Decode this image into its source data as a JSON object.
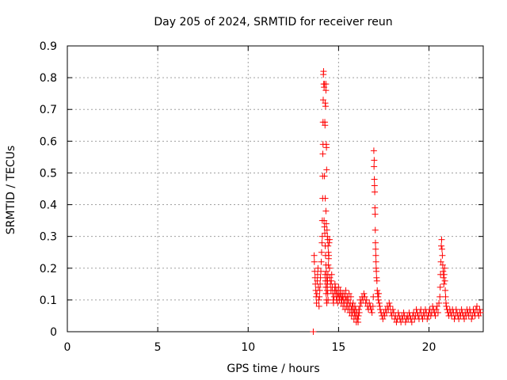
{
  "chart_data": {
    "type": "scatter",
    "title": "Day 205 of 2024, SRMTID for receiver reun",
    "xlabel": "GPS time / hours",
    "ylabel": "SRMTID / TECUs",
    "xlim": [
      0,
      23
    ],
    "ylim": [
      0,
      0.9
    ],
    "xticks": [
      0,
      5,
      10,
      15,
      20
    ],
    "yticks": [
      0,
      0.1,
      0.2,
      0.3,
      0.4,
      0.5,
      0.6,
      0.7,
      0.8,
      0.9
    ],
    "xtick_labels": [
      "0",
      "5",
      "10",
      "15",
      "20"
    ],
    "ytick_labels": [
      "0",
      "0.1",
      "0.2",
      "0.3",
      "0.4",
      "0.5",
      "0.6",
      "0.7",
      "0.8",
      "0.9"
    ],
    "grid": true,
    "marker": "+",
    "color": "#ff0000",
    "series": [
      {
        "name": "SRMTID",
        "points": [
          [
            13.6,
            0.0
          ],
          [
            13.65,
            0.24
          ],
          [
            13.66,
            0.22
          ],
          [
            13.68,
            0.19
          ],
          [
            13.7,
            0.17
          ],
          [
            13.72,
            0.15
          ],
          [
            13.74,
            0.13
          ],
          [
            13.76,
            0.11
          ],
          [
            13.78,
            0.09
          ],
          [
            13.8,
            0.12
          ],
          [
            13.82,
            0.16
          ],
          [
            13.84,
            0.18
          ],
          [
            13.86,
            0.2
          ],
          [
            13.88,
            0.14
          ],
          [
            13.9,
            0.1
          ],
          [
            13.92,
            0.08
          ],
          [
            13.94,
            0.11
          ],
          [
            13.96,
            0.13
          ],
          [
            13.98,
            0.15
          ],
          [
            14.0,
            0.17
          ],
          [
            14.02,
            0.19
          ],
          [
            14.04,
            0.22
          ],
          [
            14.06,
            0.25
          ],
          [
            14.08,
            0.28
          ],
          [
            14.1,
            0.3
          ],
          [
            14.1,
            0.35
          ],
          [
            14.12,
            0.42
          ],
          [
            14.12,
            0.49
          ],
          [
            14.13,
            0.56
          ],
          [
            14.14,
            0.59
          ],
          [
            14.14,
            0.66
          ],
          [
            14.15,
            0.73
          ],
          [
            14.16,
            0.81
          ],
          [
            14.17,
            0.82
          ],
          [
            14.18,
            0.78
          ],
          [
            14.2,
            0.77
          ],
          [
            14.22,
            0.78
          ],
          [
            14.24,
            0.66
          ],
          [
            14.25,
            0.65
          ],
          [
            14.26,
            0.72
          ],
          [
            14.28,
            0.71
          ],
          [
            14.3,
            0.76
          ],
          [
            14.3,
            0.78
          ],
          [
            14.32,
            0.59
          ],
          [
            14.33,
            0.58
          ],
          [
            14.34,
            0.51
          ],
          [
            14.22,
            0.49
          ],
          [
            14.26,
            0.42
          ],
          [
            14.3,
            0.38
          ],
          [
            14.32,
            0.34
          ],
          [
            14.36,
            0.32
          ],
          [
            14.38,
            0.3
          ],
          [
            14.4,
            0.29
          ],
          [
            14.42,
            0.27
          ],
          [
            14.44,
            0.25
          ],
          [
            14.46,
            0.24
          ],
          [
            14.48,
            0.28
          ],
          [
            14.5,
            0.29
          ],
          [
            14.2,
            0.35
          ],
          [
            14.22,
            0.33
          ],
          [
            14.24,
            0.31
          ],
          [
            14.26,
            0.27
          ],
          [
            14.28,
            0.24
          ],
          [
            14.3,
            0.21
          ],
          [
            14.32,
            0.19
          ],
          [
            14.34,
            0.17
          ],
          [
            14.36,
            0.15
          ],
          [
            14.38,
            0.14
          ],
          [
            14.4,
            0.12
          ],
          [
            14.42,
            0.1
          ],
          [
            14.25,
            0.18
          ],
          [
            14.27,
            0.16
          ],
          [
            14.29,
            0.14
          ],
          [
            14.31,
            0.12
          ],
          [
            14.33,
            0.1
          ],
          [
            14.35,
            0.09
          ],
          [
            14.37,
            0.13
          ],
          [
            14.39,
            0.16
          ],
          [
            14.41,
            0.18
          ],
          [
            14.43,
            0.21
          ],
          [
            14.45,
            0.23
          ],
          [
            14.5,
            0.2
          ],
          [
            14.52,
            0.17
          ],
          [
            14.55,
            0.15
          ],
          [
            14.58,
            0.13
          ],
          [
            14.6,
            0.16
          ],
          [
            14.62,
            0.18
          ],
          [
            14.65,
            0.14
          ],
          [
            14.68,
            0.12
          ],
          [
            14.7,
            0.1
          ],
          [
            14.72,
            0.09
          ],
          [
            14.75,
            0.11
          ],
          [
            14.78,
            0.13
          ],
          [
            14.8,
            0.15
          ],
          [
            14.82,
            0.14
          ],
          [
            14.85,
            0.12
          ],
          [
            14.88,
            0.1
          ],
          [
            14.9,
            0.13
          ],
          [
            14.92,
            0.11
          ],
          [
            14.95,
            0.09
          ],
          [
            14.98,
            0.12
          ],
          [
            15.0,
            0.14
          ],
          [
            15.02,
            0.11
          ],
          [
            15.05,
            0.1
          ],
          [
            15.08,
            0.12
          ],
          [
            15.1,
            0.13
          ],
          [
            15.12,
            0.11
          ],
          [
            15.15,
            0.09
          ],
          [
            15.18,
            0.1
          ],
          [
            15.2,
            0.12
          ],
          [
            15.22,
            0.11
          ],
          [
            15.25,
            0.08
          ],
          [
            15.28,
            0.1
          ],
          [
            15.3,
            0.12
          ],
          [
            15.33,
            0.09
          ],
          [
            15.36,
            0.07
          ],
          [
            15.38,
            0.11
          ],
          [
            15.4,
            0.13
          ],
          [
            15.42,
            0.1
          ],
          [
            15.45,
            0.08
          ],
          [
            15.48,
            0.11
          ],
          [
            15.5,
            0.09
          ],
          [
            15.52,
            0.07
          ],
          [
            15.55,
            0.1
          ],
          [
            15.58,
            0.12
          ],
          [
            15.6,
            0.08
          ],
          [
            15.62,
            0.06
          ],
          [
            15.65,
            0.09
          ],
          [
            15.68,
            0.11
          ],
          [
            15.7,
            0.07
          ],
          [
            15.72,
            0.05
          ],
          [
            15.75,
            0.08
          ],
          [
            15.78,
            0.06
          ],
          [
            15.8,
            0.09
          ],
          [
            15.82,
            0.07
          ],
          [
            15.85,
            0.04
          ],
          [
            15.88,
            0.06
          ],
          [
            15.9,
            0.08
          ],
          [
            15.92,
            0.05
          ],
          [
            15.95,
            0.07
          ],
          [
            15.98,
            0.03
          ],
          [
            16.0,
            0.05
          ],
          [
            16.02,
            0.06
          ],
          [
            16.05,
            0.04
          ],
          [
            16.08,
            0.03
          ],
          [
            16.1,
            0.05
          ],
          [
            16.12,
            0.07
          ],
          [
            16.15,
            0.06
          ],
          [
            16.18,
            0.08
          ],
          [
            16.2,
            0.1
          ],
          [
            16.25,
            0.09
          ],
          [
            16.3,
            0.11
          ],
          [
            16.35,
            0.1
          ],
          [
            16.4,
            0.12
          ],
          [
            16.45,
            0.11
          ],
          [
            16.5,
            0.09
          ],
          [
            16.55,
            0.1
          ],
          [
            16.6,
            0.08
          ],
          [
            16.65,
            0.07
          ],
          [
            16.7,
            0.09
          ],
          [
            16.75,
            0.08
          ],
          [
            16.8,
            0.07
          ],
          [
            16.85,
            0.06
          ],
          [
            16.9,
            0.08
          ],
          [
            16.92,
            0.11
          ],
          [
            16.95,
            0.57
          ],
          [
            16.96,
            0.52
          ],
          [
            16.97,
            0.54
          ],
          [
            16.98,
            0.48
          ],
          [
            16.99,
            0.46
          ],
          [
            17.0,
            0.44
          ],
          [
            17.01,
            0.39
          ],
          [
            17.02,
            0.37
          ],
          [
            17.03,
            0.32
          ],
          [
            17.04,
            0.28
          ],
          [
            17.05,
            0.26
          ],
          [
            17.06,
            0.24
          ],
          [
            17.07,
            0.22
          ],
          [
            17.08,
            0.2
          ],
          [
            17.09,
            0.19
          ],
          [
            17.1,
            0.17
          ],
          [
            17.12,
            0.16
          ],
          [
            17.14,
            0.13
          ],
          [
            17.16,
            0.12
          ],
          [
            17.18,
            0.11
          ],
          [
            17.2,
            0.1
          ],
          [
            17.22,
            0.12
          ],
          [
            17.25,
            0.09
          ],
          [
            17.28,
            0.08
          ],
          [
            17.3,
            0.07
          ],
          [
            17.35,
            0.06
          ],
          [
            17.4,
            0.05
          ],
          [
            17.45,
            0.04
          ],
          [
            17.5,
            0.06
          ],
          [
            17.55,
            0.05
          ],
          [
            17.6,
            0.07
          ],
          [
            17.65,
            0.06
          ],
          [
            17.7,
            0.08
          ],
          [
            17.75,
            0.07
          ],
          [
            17.8,
            0.09
          ],
          [
            17.85,
            0.08
          ],
          [
            17.9,
            0.06
          ],
          [
            17.95,
            0.05
          ],
          [
            18.0,
            0.07
          ],
          [
            18.05,
            0.06
          ],
          [
            18.1,
            0.04
          ],
          [
            18.15,
            0.05
          ],
          [
            18.2,
            0.03
          ],
          [
            18.25,
            0.04
          ],
          [
            18.3,
            0.06
          ],
          [
            18.35,
            0.05
          ],
          [
            18.4,
            0.04
          ],
          [
            18.45,
            0.03
          ],
          [
            18.5,
            0.05
          ],
          [
            18.55,
            0.04
          ],
          [
            18.6,
            0.06
          ],
          [
            18.65,
            0.05
          ],
          [
            18.7,
            0.03
          ],
          [
            18.75,
            0.04
          ],
          [
            18.8,
            0.05
          ],
          [
            18.85,
            0.04
          ],
          [
            18.9,
            0.06
          ],
          [
            18.95,
            0.05
          ],
          [
            19.0,
            0.04
          ],
          [
            19.05,
            0.03
          ],
          [
            19.1,
            0.05
          ],
          [
            19.15,
            0.06
          ],
          [
            19.2,
            0.04
          ],
          [
            19.25,
            0.05
          ],
          [
            19.3,
            0.07
          ],
          [
            19.35,
            0.06
          ],
          [
            19.4,
            0.05
          ],
          [
            19.45,
            0.04
          ],
          [
            19.5,
            0.06
          ],
          [
            19.55,
            0.07
          ],
          [
            19.6,
            0.05
          ],
          [
            19.65,
            0.04
          ],
          [
            19.7,
            0.06
          ],
          [
            19.75,
            0.05
          ],
          [
            19.8,
            0.07
          ],
          [
            19.85,
            0.06
          ],
          [
            19.9,
            0.04
          ],
          [
            19.95,
            0.05
          ],
          [
            20.0,
            0.06
          ],
          [
            20.05,
            0.07
          ],
          [
            20.1,
            0.05
          ],
          [
            20.15,
            0.06
          ],
          [
            20.2,
            0.08
          ],
          [
            20.25,
            0.07
          ],
          [
            20.3,
            0.06
          ],
          [
            20.35,
            0.05
          ],
          [
            20.4,
            0.07
          ],
          [
            20.45,
            0.08
          ],
          [
            20.5,
            0.06
          ],
          [
            20.55,
            0.09
          ],
          [
            20.6,
            0.11
          ],
          [
            20.62,
            0.14
          ],
          [
            20.64,
            0.18
          ],
          [
            20.66,
            0.22
          ],
          [
            20.68,
            0.27
          ],
          [
            20.7,
            0.29
          ],
          [
            20.72,
            0.26
          ],
          [
            20.74,
            0.24
          ],
          [
            20.76,
            0.21
          ],
          [
            20.78,
            0.19
          ],
          [
            20.8,
            0.17
          ],
          [
            20.82,
            0.15
          ],
          [
            20.84,
            0.18
          ],
          [
            20.86,
            0.2
          ],
          [
            20.88,
            0.16
          ],
          [
            20.9,
            0.13
          ],
          [
            20.92,
            0.11
          ],
          [
            20.94,
            0.09
          ],
          [
            20.96,
            0.08
          ],
          [
            21.0,
            0.07
          ],
          [
            21.05,
            0.06
          ],
          [
            21.1,
            0.05
          ],
          [
            21.15,
            0.07
          ],
          [
            21.2,
            0.06
          ],
          [
            21.25,
            0.05
          ],
          [
            21.3,
            0.07
          ],
          [
            21.35,
            0.06
          ],
          [
            21.4,
            0.04
          ],
          [
            21.45,
            0.05
          ],
          [
            21.5,
            0.07
          ],
          [
            21.55,
            0.06
          ],
          [
            21.6,
            0.05
          ],
          [
            21.65,
            0.04
          ],
          [
            21.7,
            0.06
          ],
          [
            21.75,
            0.05
          ],
          [
            21.8,
            0.07
          ],
          [
            21.85,
            0.06
          ],
          [
            21.9,
            0.05
          ],
          [
            21.95,
            0.04
          ],
          [
            22.0,
            0.06
          ],
          [
            22.05,
            0.05
          ],
          [
            22.1,
            0.07
          ],
          [
            22.15,
            0.06
          ],
          [
            22.2,
            0.05
          ],
          [
            22.25,
            0.07
          ],
          [
            22.3,
            0.06
          ],
          [
            22.35,
            0.04
          ],
          [
            22.4,
            0.05
          ],
          [
            22.45,
            0.07
          ],
          [
            22.5,
            0.06
          ],
          [
            22.55,
            0.05
          ],
          [
            22.6,
            0.07
          ],
          [
            22.65,
            0.08
          ],
          [
            22.7,
            0.06
          ],
          [
            22.75,
            0.05
          ],
          [
            22.8,
            0.07
          ],
          [
            22.85,
            0.06
          ]
        ]
      }
    ]
  }
}
